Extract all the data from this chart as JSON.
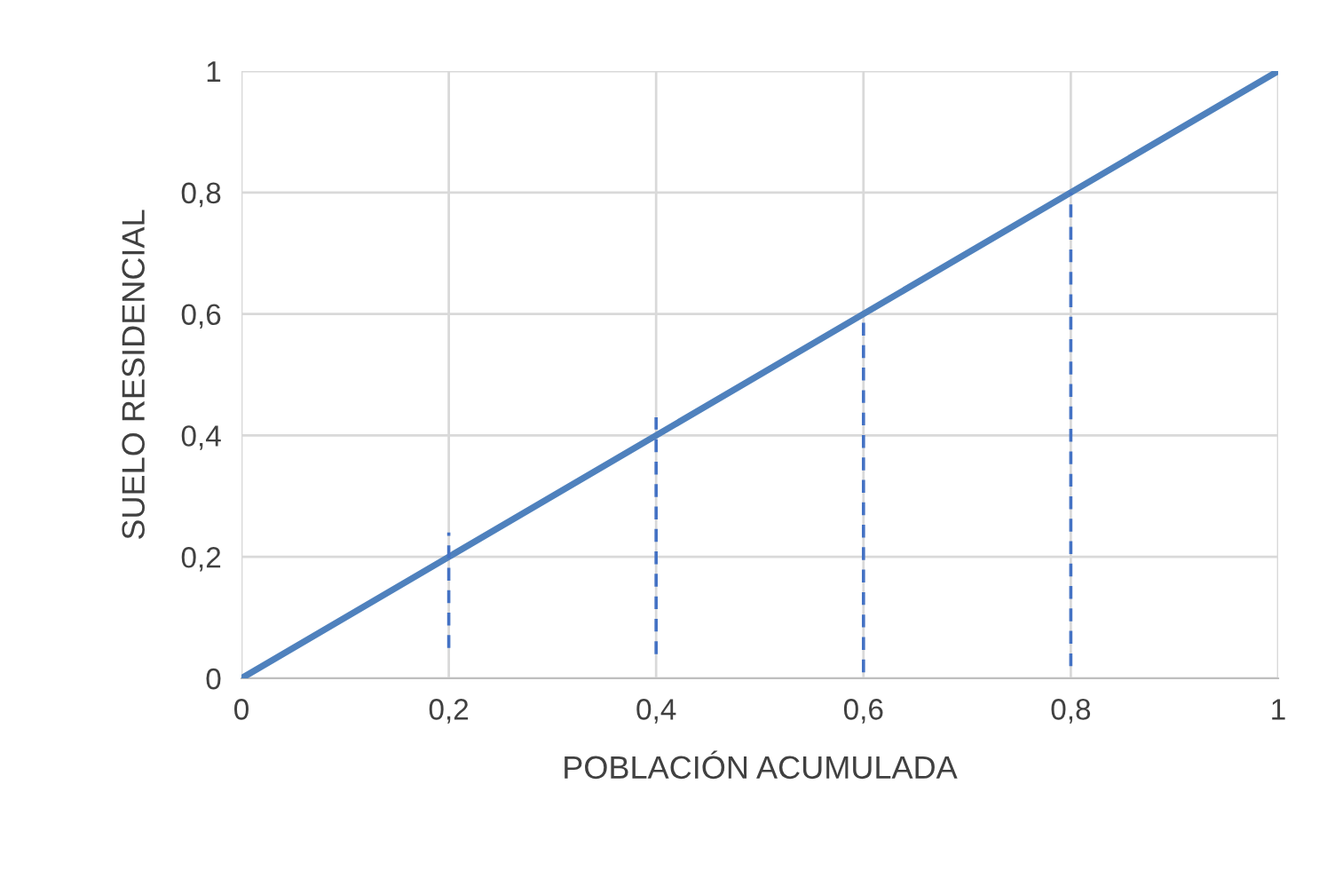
{
  "chart_data": {
    "type": "line",
    "xlabel": "POBLACIÓN ACUMULADA",
    "ylabel": "SUELO RESIDENCIAL",
    "xlim": [
      0,
      1
    ],
    "ylim": [
      0,
      1
    ],
    "xticks": [
      0,
      {
        "value": 0.2,
        "label": "0,2"
      },
      {
        "value": 0.4,
        "label": "0,4"
      },
      {
        "value": 0.6,
        "label": "0,6"
      },
      {
        "value": 0.8,
        "label": "0,8"
      },
      1
    ],
    "yticks": [
      0,
      {
        "value": 0.2,
        "label": "0,2"
      },
      {
        "value": 0.4,
        "label": "0,4"
      },
      {
        "value": 0.6,
        "label": "0,6"
      },
      {
        "value": 0.8,
        "label": "0,8"
      },
      1
    ],
    "grid": true,
    "legend": false,
    "marker": "none",
    "series": [
      {
        "color": "#4f81bd",
        "x": [
          0,
          1
        ],
        "values": [
          0,
          1
        ],
        "line_style": "solid"
      },
      {
        "color": "#4472c4",
        "x": [
          0.2,
          0.2
        ],
        "values": [
          0.05,
          0.24
        ],
        "line_style": "dashed"
      },
      {
        "color": "#4472c4",
        "x": [
          0.4,
          0.4
        ],
        "values": [
          0.04,
          0.43
        ],
        "line_style": "dashed"
      },
      {
        "color": "#4472c4",
        "x": [
          0.6,
          0.6
        ],
        "values": [
          0.01,
          0.6
        ],
        "line_style": "dashed"
      },
      {
        "color": "#4472c4",
        "x": [
          0.8,
          0.8
        ],
        "values": [
          0.02,
          0.8
        ],
        "line_style": "dashed"
      }
    ]
  }
}
